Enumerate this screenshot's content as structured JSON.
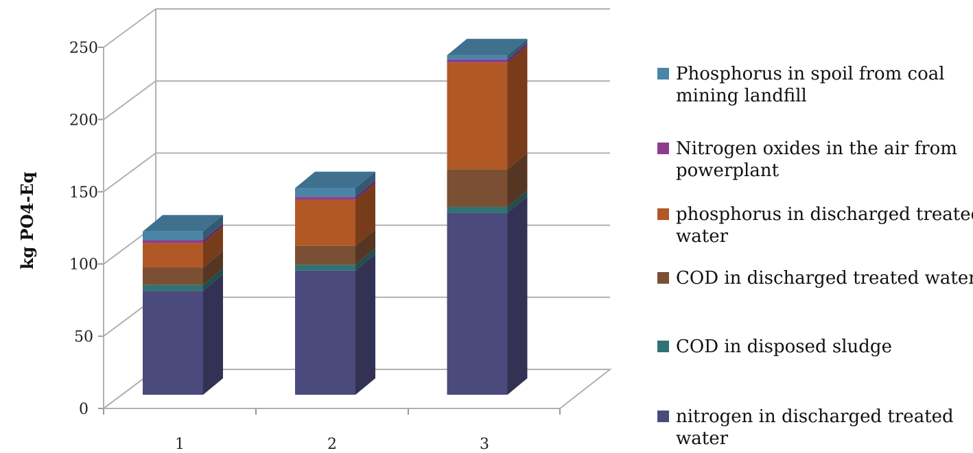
{
  "chart_data": {
    "type": "bar",
    "stacked": true,
    "three_d": true,
    "categories": [
      "1",
      "2",
      "3"
    ],
    "ylabel": "kg PO4-Eq",
    "ylim": [
      0,
      250
    ],
    "yticks": [
      "0",
      "50",
      "100",
      "150",
      "200",
      "250"
    ],
    "grid": true,
    "legend_position": "right",
    "series": [
      {
        "name": "nitrogen in discharged treated water",
        "color": "#4b4a7c",
        "values": [
          72,
          86,
          126
        ]
      },
      {
        "name": "COD in disposed sludge",
        "color": "#2f7373",
        "values": [
          4,
          4,
          4
        ]
      },
      {
        "name": "COD in discharged treated water",
        "color": "#7b4f33",
        "values": [
          12,
          13,
          26
        ]
      },
      {
        "name": "phosphorus in discharged treated water",
        "color": "#b05826",
        "values": [
          17,
          32,
          74
        ]
      },
      {
        "name": "Nitrogen oxides in the air from powerplant",
        "color": "#8d3d8e",
        "values": [
          2,
          2,
          2
        ]
      },
      {
        "name": "Phosphorus in spoil from coal mining landfill",
        "color": "#4a85a8",
        "values": [
          6,
          6,
          3
        ]
      }
    ]
  }
}
